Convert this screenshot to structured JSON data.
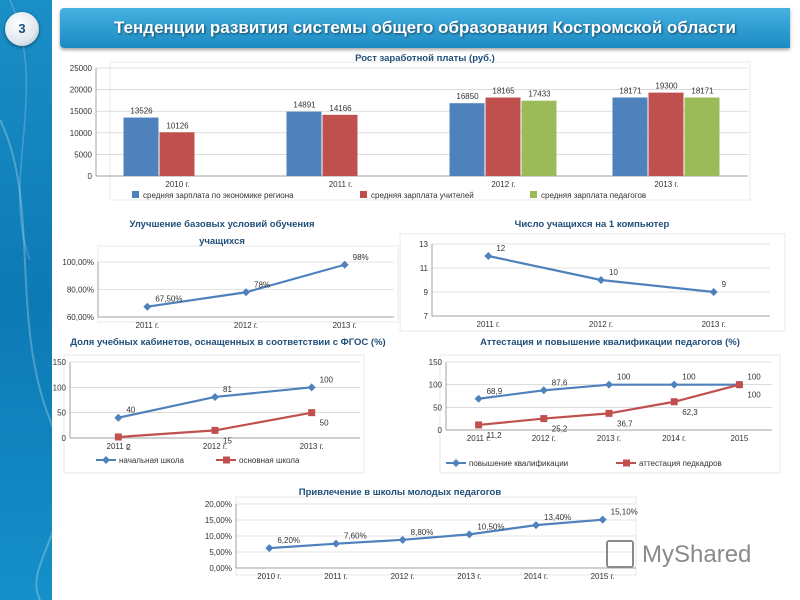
{
  "slide": {
    "number": "3",
    "title": "Тенденции развития системы общего образования Костромской области"
  },
  "watermark": {
    "text": "MyShared"
  },
  "colors": {
    "blue": "#4f81bd",
    "red": "#c0504d",
    "green": "#9bbb59",
    "title_bar": "#2b9bd0"
  },
  "chart_data": [
    {
      "id": "salary",
      "type": "bar",
      "title": "Рост заработной платы (руб.)",
      "categories": [
        "2010 г.",
        "2011 г.",
        "2012 г.",
        "2013 г."
      ],
      "series": [
        {
          "name": "средняя зарплата по экономике региона",
          "color": "#4f81bd",
          "values": [
            13526,
            14891,
            16850,
            18171
          ],
          "labels": [
            "13526",
            "14891",
            "16850",
            "18171"
          ]
        },
        {
          "name": "средняя зарплата учителей",
          "color": "#c0504d",
          "values": [
            10126,
            14166,
            18165,
            19300
          ],
          "labels": [
            "10126",
            "14166",
            "18165",
            "19300"
          ]
        },
        {
          "name": "средняя зарплата педагогов",
          "color": "#9bbb59",
          "values": [
            null,
            null,
            17433,
            18171
          ],
          "labels": [
            null,
            null,
            "17433",
            "18171"
          ]
        }
      ],
      "ylim": [
        0,
        25000
      ],
      "yticks": [
        0,
        5000,
        10000,
        15000,
        20000,
        25000
      ],
      "grid": true,
      "legend": "bottom"
    },
    {
      "id": "conditions",
      "type": "line",
      "title": "Улучшение базовых условий обучения учащихся",
      "categories": [
        "2011 г.",
        "2012 г.",
        "2013 г."
      ],
      "series": [
        {
          "color": "#4f81bd",
          "values": [
            67.5,
            78,
            98
          ],
          "labels": [
            "67,50%",
            "78%",
            "98%"
          ]
        }
      ],
      "ylim": [
        60,
        100
      ],
      "yticks": [
        60,
        80,
        100
      ],
      "ytick_labels": [
        "60,00%",
        "80,00%",
        "100,00%"
      ],
      "grid": true,
      "legend": "none"
    },
    {
      "id": "computers",
      "type": "line",
      "title": "Число учащихся на 1 компьютер",
      "categories": [
        "2011 г.",
        "2012 г.",
        "2013 г."
      ],
      "series": [
        {
          "color": "#4f81bd",
          "values": [
            12,
            10,
            9
          ],
          "labels": [
            "12",
            "10",
            "9"
          ]
        }
      ],
      "ylim": [
        7,
        13
      ],
      "yticks": [
        7,
        9,
        11,
        13
      ],
      "grid": true,
      "legend": "none"
    },
    {
      "id": "fgos",
      "type": "line",
      "title": "Доля учебных кабинетов, оснащенных в соответствии с ФГОС (%)",
      "categories": [
        "2011 г.",
        "2012 г.",
        "2013 г."
      ],
      "series": [
        {
          "name": "начальная школа",
          "color": "#4f81bd",
          "values": [
            40,
            81,
            100
          ],
          "labels": [
            "40",
            "81",
            "100"
          ]
        },
        {
          "name": "основная школа",
          "color": "#c0504d",
          "values": [
            2,
            15,
            50
          ],
          "labels": [
            "2",
            "15",
            "50"
          ]
        }
      ],
      "ylim": [
        0,
        150
      ],
      "yticks": [
        0,
        50,
        100,
        150
      ],
      "grid": true,
      "legend": "bottom"
    },
    {
      "id": "attestation",
      "type": "line",
      "title": "Аттестация и повышение квалификации педагогов (%)",
      "categories": [
        "2011 г.",
        "2012 г.",
        "2013 г.",
        "2014 г.",
        "2015"
      ],
      "series": [
        {
          "name": "повышение квалификации",
          "color": "#4f81bd",
          "values": [
            68.9,
            87.6,
            100,
            100,
            100
          ],
          "labels": [
            "68,9",
            "87,6",
            "100",
            "100",
            "100"
          ]
        },
        {
          "name": "аттестация педкадров",
          "color": "#c0504d",
          "values": [
            11.2,
            25.2,
            36.7,
            62.3,
            100
          ],
          "labels": [
            "11,2",
            "25,2",
            "36,7",
            "62,3",
            "100"
          ]
        }
      ],
      "ylim": [
        0,
        150
      ],
      "yticks": [
        0,
        50,
        100,
        150
      ],
      "grid": true,
      "legend": "bottom"
    },
    {
      "id": "young",
      "type": "line",
      "title": "Привлечение в школы молодых педагогов",
      "categories": [
        "2010 г.",
        "2011 г.",
        "2012 г.",
        "2013 г.",
        "2014 г.",
        "2015 г."
      ],
      "series": [
        {
          "color": "#4f81bd",
          "values": [
            6.2,
            7.6,
            8.8,
            10.5,
            13.4,
            15.1
          ],
          "labels": [
            "6,20%",
            "7,60%",
            "8,80%",
            "10,50%",
            "13,40%",
            "15,10%"
          ]
        }
      ],
      "ylim": [
        0,
        20
      ],
      "yticks": [
        0,
        5,
        10,
        15,
        20
      ],
      "ytick_labels": [
        "0,00%",
        "5,00%",
        "10,00%",
        "15,00%",
        "20,00%"
      ],
      "grid": true,
      "legend": "none"
    }
  ]
}
